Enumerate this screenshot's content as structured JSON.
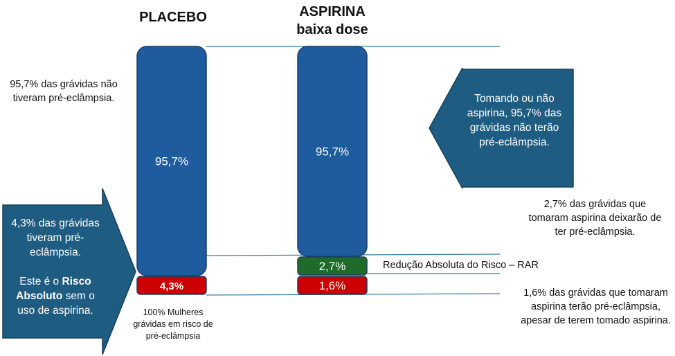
{
  "columns": {
    "placebo": {
      "title": "PLACEBO"
    },
    "aspirina": {
      "title_line1": "ASPIRINA",
      "title_line2": "baixa dose"
    }
  },
  "notes": {
    "left_top": "95,7% das grávidas não tiveram pré-eclâmpsia.",
    "bottom_center": "100% Mulheres grávidas em risco de pré-eclâmpsia",
    "right_mid": "2,7% das grávidas que tomaram aspirina deixarão de ter pré-eclâmpsia.",
    "rar": "Redução Absoluta do Risco – RAR",
    "right_bottom": "1,6% das grávidas que tomaram aspirina terão pré-eclâmpsia, apesar de terem tomado aspirina."
  },
  "arrows": {
    "right_arrow": "Tomando ou não aspirina, 95,7% das grávidas não terão pré-eclâmpsia.",
    "left_arrow_p1": "4,3% das grávidas tiveram pré-eclâmpsia.",
    "left_arrow_p2a": "Este é o ",
    "left_arrow_bold": "Risco Absoluto",
    "left_arrow_p2b": " sem o uso de aspirina."
  },
  "colors": {
    "blue": "#1f5c9e",
    "blue_dark": "#1b3f66",
    "red": "#cc0000",
    "green": "#1e6b2a",
    "arrow_fill": "#1f5c82",
    "line": "#3a7ea0"
  },
  "chart_data": {
    "type": "bar",
    "stacked": true,
    "categories": [
      "PLACEBO",
      "ASPIRINA baixa dose"
    ],
    "series": [
      {
        "values": [
          95.7,
          95.7
        ],
        "labels": [
          "95,7%",
          "95,7%"
        ],
        "color": "#1f5c9e"
      },
      {
        "values": [
          0,
          2.7
        ],
        "labels": [
          "",
          "2,7%"
        ],
        "color": "#1e6b2a"
      },
      {
        "values": [
          4.3,
          1.6
        ],
        "labels": [
          "4,3%",
          "1,6%"
        ],
        "color": "#cc0000"
      }
    ]
  }
}
